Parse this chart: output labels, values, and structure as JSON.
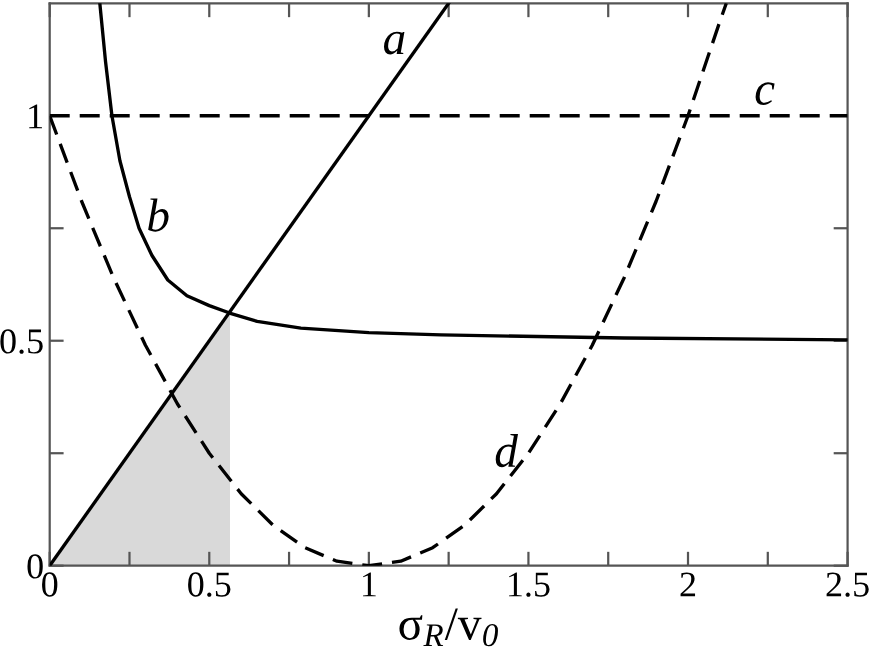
{
  "chart_data": {
    "type": "line",
    "xlabel": "σ$_{R}$/v$_{0}$",
    "xlim": [
      0,
      2.5
    ],
    "ylim": [
      0,
      1.25
    ],
    "xticks": [
      0,
      {
        "value": 0.25,
        "label": null
      },
      0.5,
      {
        "value": 0.75,
        "label": null
      },
      1,
      {
        "value": 1.25,
        "label": null
      },
      1.5,
      {
        "value": 1.75,
        "label": null
      },
      2,
      {
        "value": 2.25,
        "label": null
      },
      2.5
    ],
    "yticks": [
      0,
      {
        "value": 0.25,
        "label": null
      },
      0.5,
      {
        "value": 0.75,
        "label": null
      },
      1
    ],
    "grid": false,
    "legend": false,
    "marker": "none",
    "series": [
      {
        "type": "area",
        "color": "#d9d9d9",
        "x": [
          0,
          0.565
        ],
        "values": [
          0,
          0.565
        ]
      },
      {
        "name": "a",
        "color": "#000000",
        "line_style": "solid",
        "x": [
          0,
          1.25
        ],
        "values": [
          0,
          1.25
        ]
      },
      {
        "name": "b",
        "color": "#000000",
        "line_style": "solid",
        "x": [
          0.157,
          0.175,
          0.195,
          0.22,
          0.25,
          0.28,
          0.32,
          0.37,
          0.43,
          0.5,
          0.566,
          0.65,
          0.787,
          1.0,
          1.226,
          1.8,
          2.5
        ],
        "values": [
          1.25,
          1.12,
          1.0,
          0.9,
          0.82,
          0.75,
          0.69,
          0.635,
          0.6,
          0.578,
          0.561,
          0.543,
          0.528,
          0.518,
          0.513,
          0.506,
          0.502
        ]
      },
      {
        "name": "c",
        "color": "#000000",
        "line_style": "dashed",
        "x": [
          0,
          2.5
        ],
        "values": [
          1,
          1
        ]
      },
      {
        "name": "d",
        "color": "#000000",
        "line_style": "dashed",
        "x": [
          0,
          0.1,
          0.2,
          0.3,
          0.4,
          0.5,
          0.6,
          0.7,
          0.8,
          0.9,
          1,
          1.1,
          1.2,
          1.3,
          1.4,
          1.5,
          1.6,
          1.7,
          1.8,
          1.9,
          2,
          2.1,
          2.12
        ],
        "values": [
          1,
          0.81,
          0.64,
          0.49,
          0.36,
          0.25,
          0.16,
          0.09,
          0.04,
          0.01,
          0,
          0.01,
          0.04,
          0.09,
          0.16,
          0.25,
          0.36,
          0.49,
          0.64,
          0.81,
          1,
          1.21,
          1.25
        ]
      }
    ]
  }
}
